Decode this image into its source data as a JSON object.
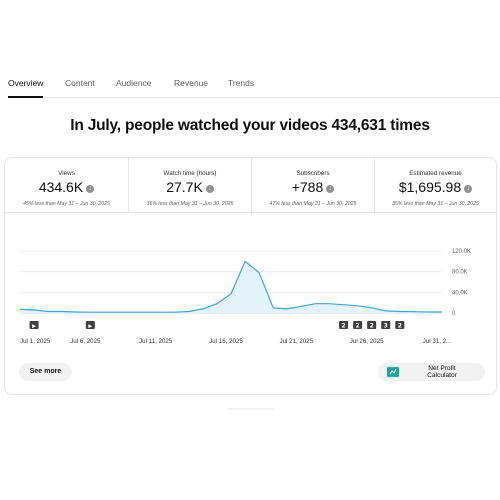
{
  "tabs": [
    "Overview",
    "Content",
    "Audience",
    "Revenue",
    "Trends"
  ],
  "headline": "In July, people watched your videos 434,631 times",
  "metrics": [
    {
      "label": "Views",
      "value": "434.6K",
      "sub": "45% less than May 31 – Jun 30, 2025"
    },
    {
      "label": "Watch time (hours)",
      "value": "27.7K",
      "sub": "36% less than May 31 – Jun 30, 2025"
    },
    {
      "label": "Subscribers",
      "value": "+788",
      "sub": "47% less than May 31 – Jun 30, 2025"
    },
    {
      "label": "Estimated revenue",
      "value": "$1,695.98",
      "sub": "35% less than May 31 – Jun 30, 2025"
    }
  ],
  "chart_data": {
    "type": "area",
    "x": [
      "Jul 1",
      "Jul 2",
      "Jul 3",
      "Jul 4",
      "Jul 5",
      "Jul 6",
      "Jul 7",
      "Jul 8",
      "Jul 9",
      "Jul 10",
      "Jul 11",
      "Jul 12",
      "Jul 13",
      "Jul 14",
      "Jul 15",
      "Jul 16",
      "Jul 17",
      "Jul 18",
      "Jul 19",
      "Jul 20",
      "Jul 21",
      "Jul 22",
      "Jul 23",
      "Jul 24",
      "Jul 25",
      "Jul 26",
      "Jul 27",
      "Jul 28",
      "Jul 29",
      "Jul 30",
      "Jul 31"
    ],
    "values": [
      7000,
      6000,
      3000,
      3000,
      2000,
      1500,
      1500,
      1500,
      1500,
      1500,
      1500,
      1500,
      3000,
      8000,
      18000,
      37000,
      100000,
      78000,
      10000,
      8000,
      13000,
      18000,
      18000,
      16000,
      14000,
      10000,
      4000,
      3000,
      2500,
      2000,
      2000
    ],
    "x_tick_labels": [
      "Jul 1, 2025",
      "Jul 6, 2025",
      "Jul 11, 2025",
      "Jul 16, 2025",
      "Jul 21, 2025",
      "Jul 26, 2025",
      "Jul 31, 2..."
    ],
    "y_tick_labels": [
      "120.0K",
      "80.0K",
      "40.0K",
      "0"
    ],
    "ylim": [
      0,
      120000
    ],
    "grid": true,
    "line_color": "#3ea6cc",
    "fill_color": "#e3f3f9",
    "markers": [
      {
        "day_index": 1,
        "label": "▶"
      },
      {
        "day_index": 5,
        "label": "▶"
      },
      {
        "day_index": 23,
        "label": "2"
      },
      {
        "day_index": 24,
        "label": "2"
      },
      {
        "day_index": 25,
        "label": "2"
      },
      {
        "day_index": 26,
        "label": "3"
      },
      {
        "day_index": 27,
        "label": "2"
      }
    ]
  },
  "buttons": {
    "see_more": "See more",
    "calculator": "Net Profit Calculator"
  },
  "calculator_icon": "calculator-icon"
}
